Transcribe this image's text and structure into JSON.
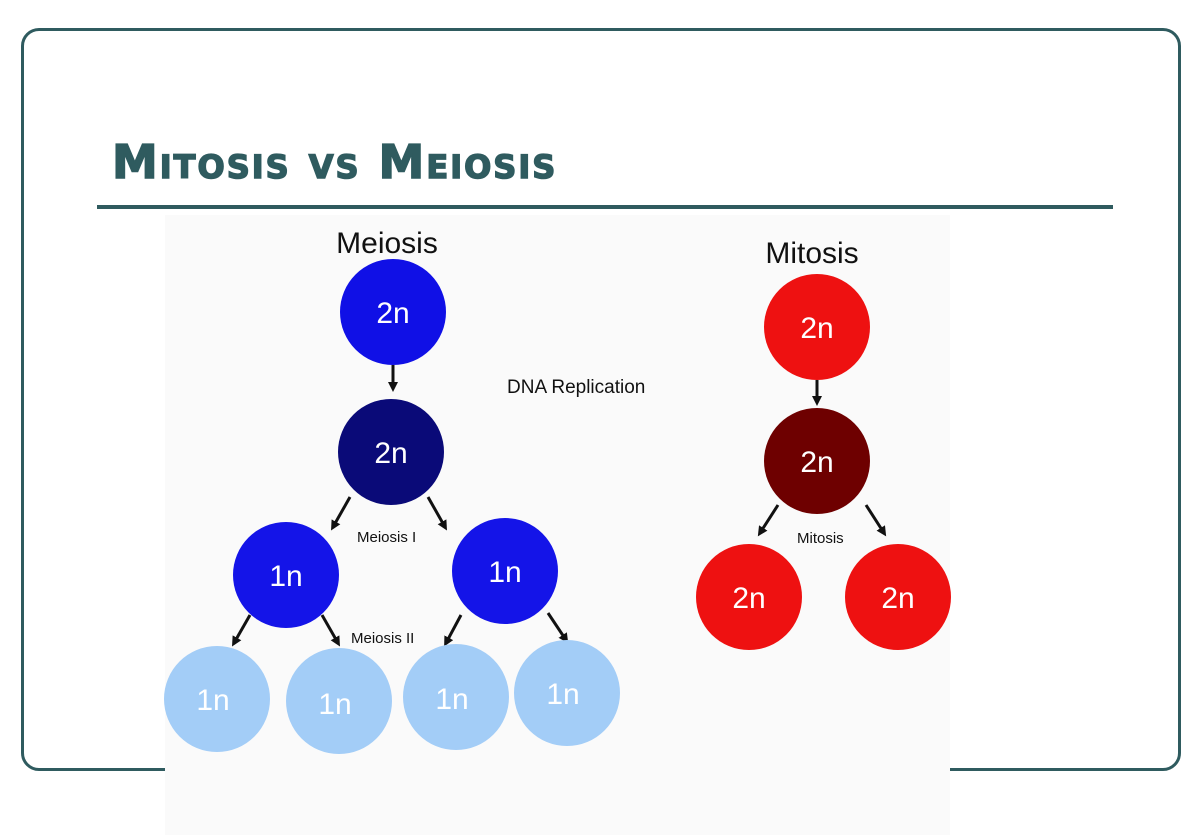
{
  "slide": {
    "title": "Mitosis vs Meiosis"
  },
  "diagram": {
    "meiosis_heading": "Meiosis",
    "mitosis_heading": "Mitosis",
    "dna_replication_label": "DNA Replication",
    "meiosis_i_label": "Meiosis I",
    "meiosis_ii_label": "Meiosis II",
    "mitosis_label": "Mitosis",
    "meiosis_cells": {
      "parent": "2n",
      "replicated": "2n",
      "meiosis_i_left": "1n",
      "meiosis_i_right": "1n",
      "gamete_1": "1n",
      "gamete_2": "1n",
      "gamete_3": "1n",
      "gamete_4": "1n"
    },
    "mitosis_cells": {
      "parent": "2n",
      "replicated": "2n",
      "daughter_left": "2n",
      "daughter_right": "2n"
    },
    "colors": {
      "meiosis_parent": "#1010e6",
      "meiosis_replicated": "#0a0a78",
      "meiosis_1n": "#1414e8",
      "meiosis_gamete": "#a3cdf7",
      "mitosis_parent": "#ee1111",
      "mitosis_replicated": "#6e0000",
      "mitosis_daughter": "#ee1111",
      "accent": "#2f5b5f"
    }
  }
}
